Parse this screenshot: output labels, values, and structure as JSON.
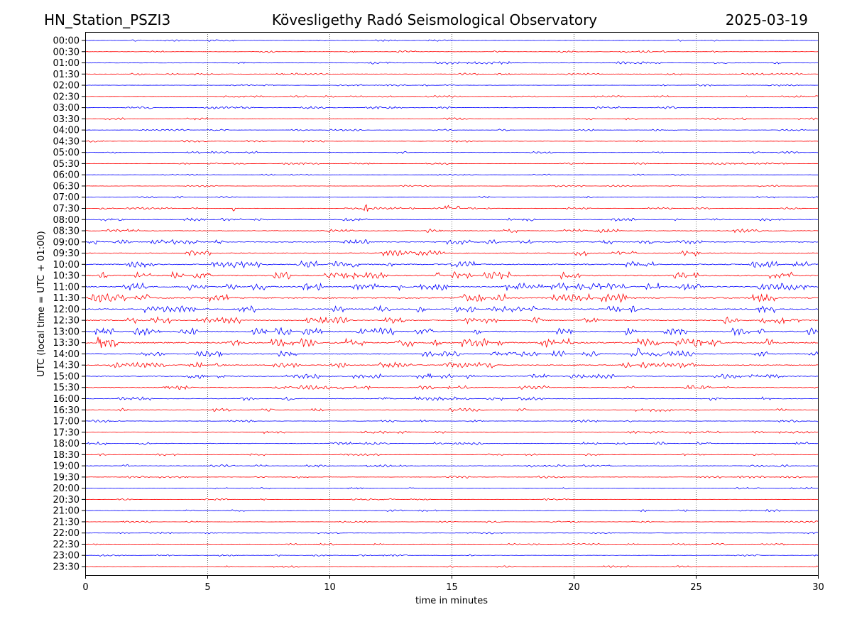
{
  "header": {
    "station": "HN_Station_PSZI3",
    "observatory": "Kövesligethy Radó Seismological Observatory",
    "date": "2025-03-19"
  },
  "chart_data": {
    "type": "line",
    "title": "Kövesligethy Radó Seismological Observatory",
    "xlabel": "time in minutes",
    "ylabel": "UTC (local time = UTC + 01:00)",
    "xlim": [
      0,
      30
    ],
    "xticks": [
      "0",
      "5",
      "10",
      "15",
      "20",
      "25",
      "30"
    ],
    "grid": "vertical dotted at every 5 minutes",
    "colors": [
      "#0000ff",
      "#ff0000"
    ],
    "rows": [
      "00:00",
      "00:30",
      "01:00",
      "01:30",
      "02:00",
      "02:30",
      "03:00",
      "03:30",
      "04:00",
      "04:30",
      "05:00",
      "05:30",
      "06:00",
      "06:30",
      "07:00",
      "07:30",
      "08:00",
      "08:30",
      "09:00",
      "09:30",
      "10:00",
      "10:30",
      "11:00",
      "11:30",
      "12:00",
      "12:30",
      "13:00",
      "13:30",
      "14:00",
      "14:30",
      "15:00",
      "15:30",
      "16:00",
      "16:30",
      "17:00",
      "17:30",
      "18:00",
      "18:30",
      "19:00",
      "19:30",
      "20:00",
      "20:30",
      "21:00",
      "21:30",
      "22:00",
      "22:30",
      "23:00",
      "23:30"
    ],
    "relative_activity": [
      0.5,
      0.6,
      0.7,
      0.6,
      0.5,
      0.5,
      0.7,
      0.6,
      0.5,
      0.6,
      0.6,
      0.5,
      0.4,
      0.5,
      0.5,
      0.6,
      0.8,
      1.0,
      1.3,
      1.5,
      1.8,
      2.0,
      2.0,
      2.2,
      1.9,
      1.8,
      2.0,
      2.3,
      1.6,
      1.5,
      1.3,
      1.2,
      1.0,
      0.9,
      0.7,
      0.7,
      0.8,
      0.6,
      0.7,
      0.6,
      0.5,
      0.5,
      0.6,
      0.5,
      0.5,
      0.5,
      0.5,
      0.5
    ],
    "spikes": [
      {
        "row": "07:30",
        "minutes": [
          6.1,
          11.5,
          14.8,
          15.3
        ]
      },
      {
        "row": "10:30",
        "minutes": [
          14.4,
          25.0
        ]
      },
      {
        "row": "11:00",
        "minutes": [
          12.9
        ]
      },
      {
        "row": "13:30",
        "minutes": [
          0.6,
          17.0,
          25.1
        ]
      },
      {
        "row": "14:00",
        "minutes": [
          22.7
        ]
      },
      {
        "row": "15:00",
        "minutes": [
          14.1
        ]
      }
    ]
  }
}
